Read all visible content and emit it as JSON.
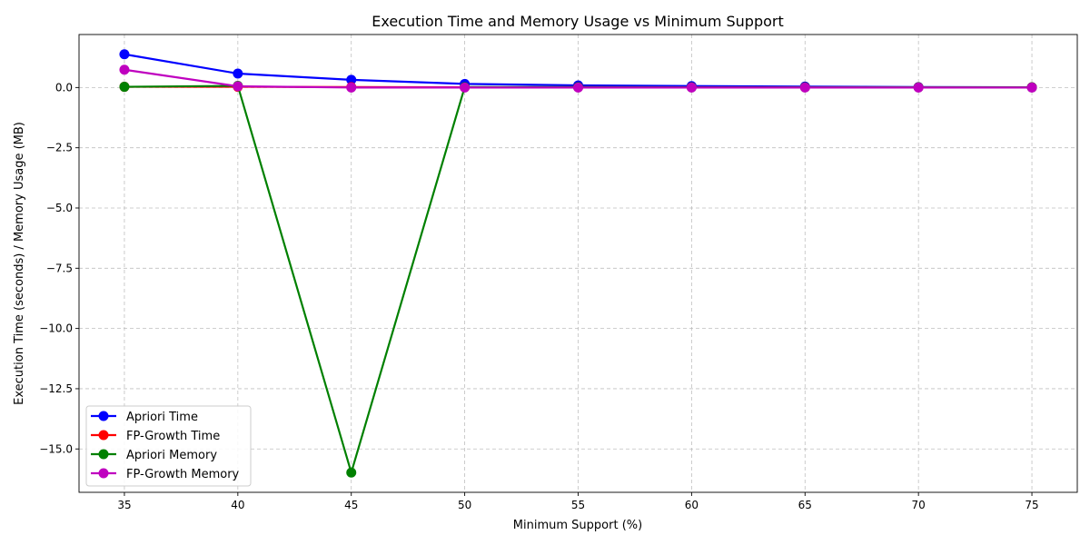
{
  "chart_data": {
    "type": "line",
    "title": "Execution Time and Memory Usage vs Minimum Support",
    "xlabel": "Minimum Support (%)",
    "ylabel": "Execution Time (seconds) / Memory Usage (MB)",
    "x": [
      35,
      40,
      45,
      50,
      55,
      60,
      65,
      70,
      75
    ],
    "xlim": [
      33,
      77
    ],
    "ylim": [
      -16.8,
      2.2
    ],
    "xticks": [
      35,
      40,
      45,
      50,
      55,
      60,
      65,
      70,
      75
    ],
    "xtick_labels": [
      "35",
      "40",
      "45",
      "50",
      "55",
      "60",
      "65",
      "70",
      "75"
    ],
    "yticks": [
      -15.0,
      -12.5,
      -10.0,
      -7.5,
      -5.0,
      -2.5,
      0.0
    ],
    "ytick_labels": [
      "−15.0",
      "−12.5",
      "−10.0",
      "−7.5",
      "−5.0",
      "−2.5",
      "0.0"
    ],
    "grid": true,
    "legend_position": "lower-left",
    "series": [
      {
        "name": "Apriori Time",
        "color": "#0000ff",
        "values": [
          1.38,
          0.58,
          0.32,
          0.15,
          0.09,
          0.06,
          0.04,
          0.02,
          0.01
        ]
      },
      {
        "name": "FP-Growth Time",
        "color": "#ff0000",
        "values": [
          0.03,
          0.03,
          0.02,
          0.01,
          0.01,
          0.01,
          0.01,
          0.01,
          0.01
        ]
      },
      {
        "name": "Apriori Memory",
        "color": "#008000",
        "values": [
          0.03,
          0.07,
          -15.98,
          0.02,
          0.02,
          0.01,
          0.01,
          0.01,
          0.01
        ]
      },
      {
        "name": "FP-Growth Memory",
        "color": "#bf00bf",
        "values": [
          0.74,
          0.05,
          0.0,
          0.0,
          0.0,
          0.0,
          0.0,
          0.0,
          0.0
        ]
      }
    ]
  }
}
